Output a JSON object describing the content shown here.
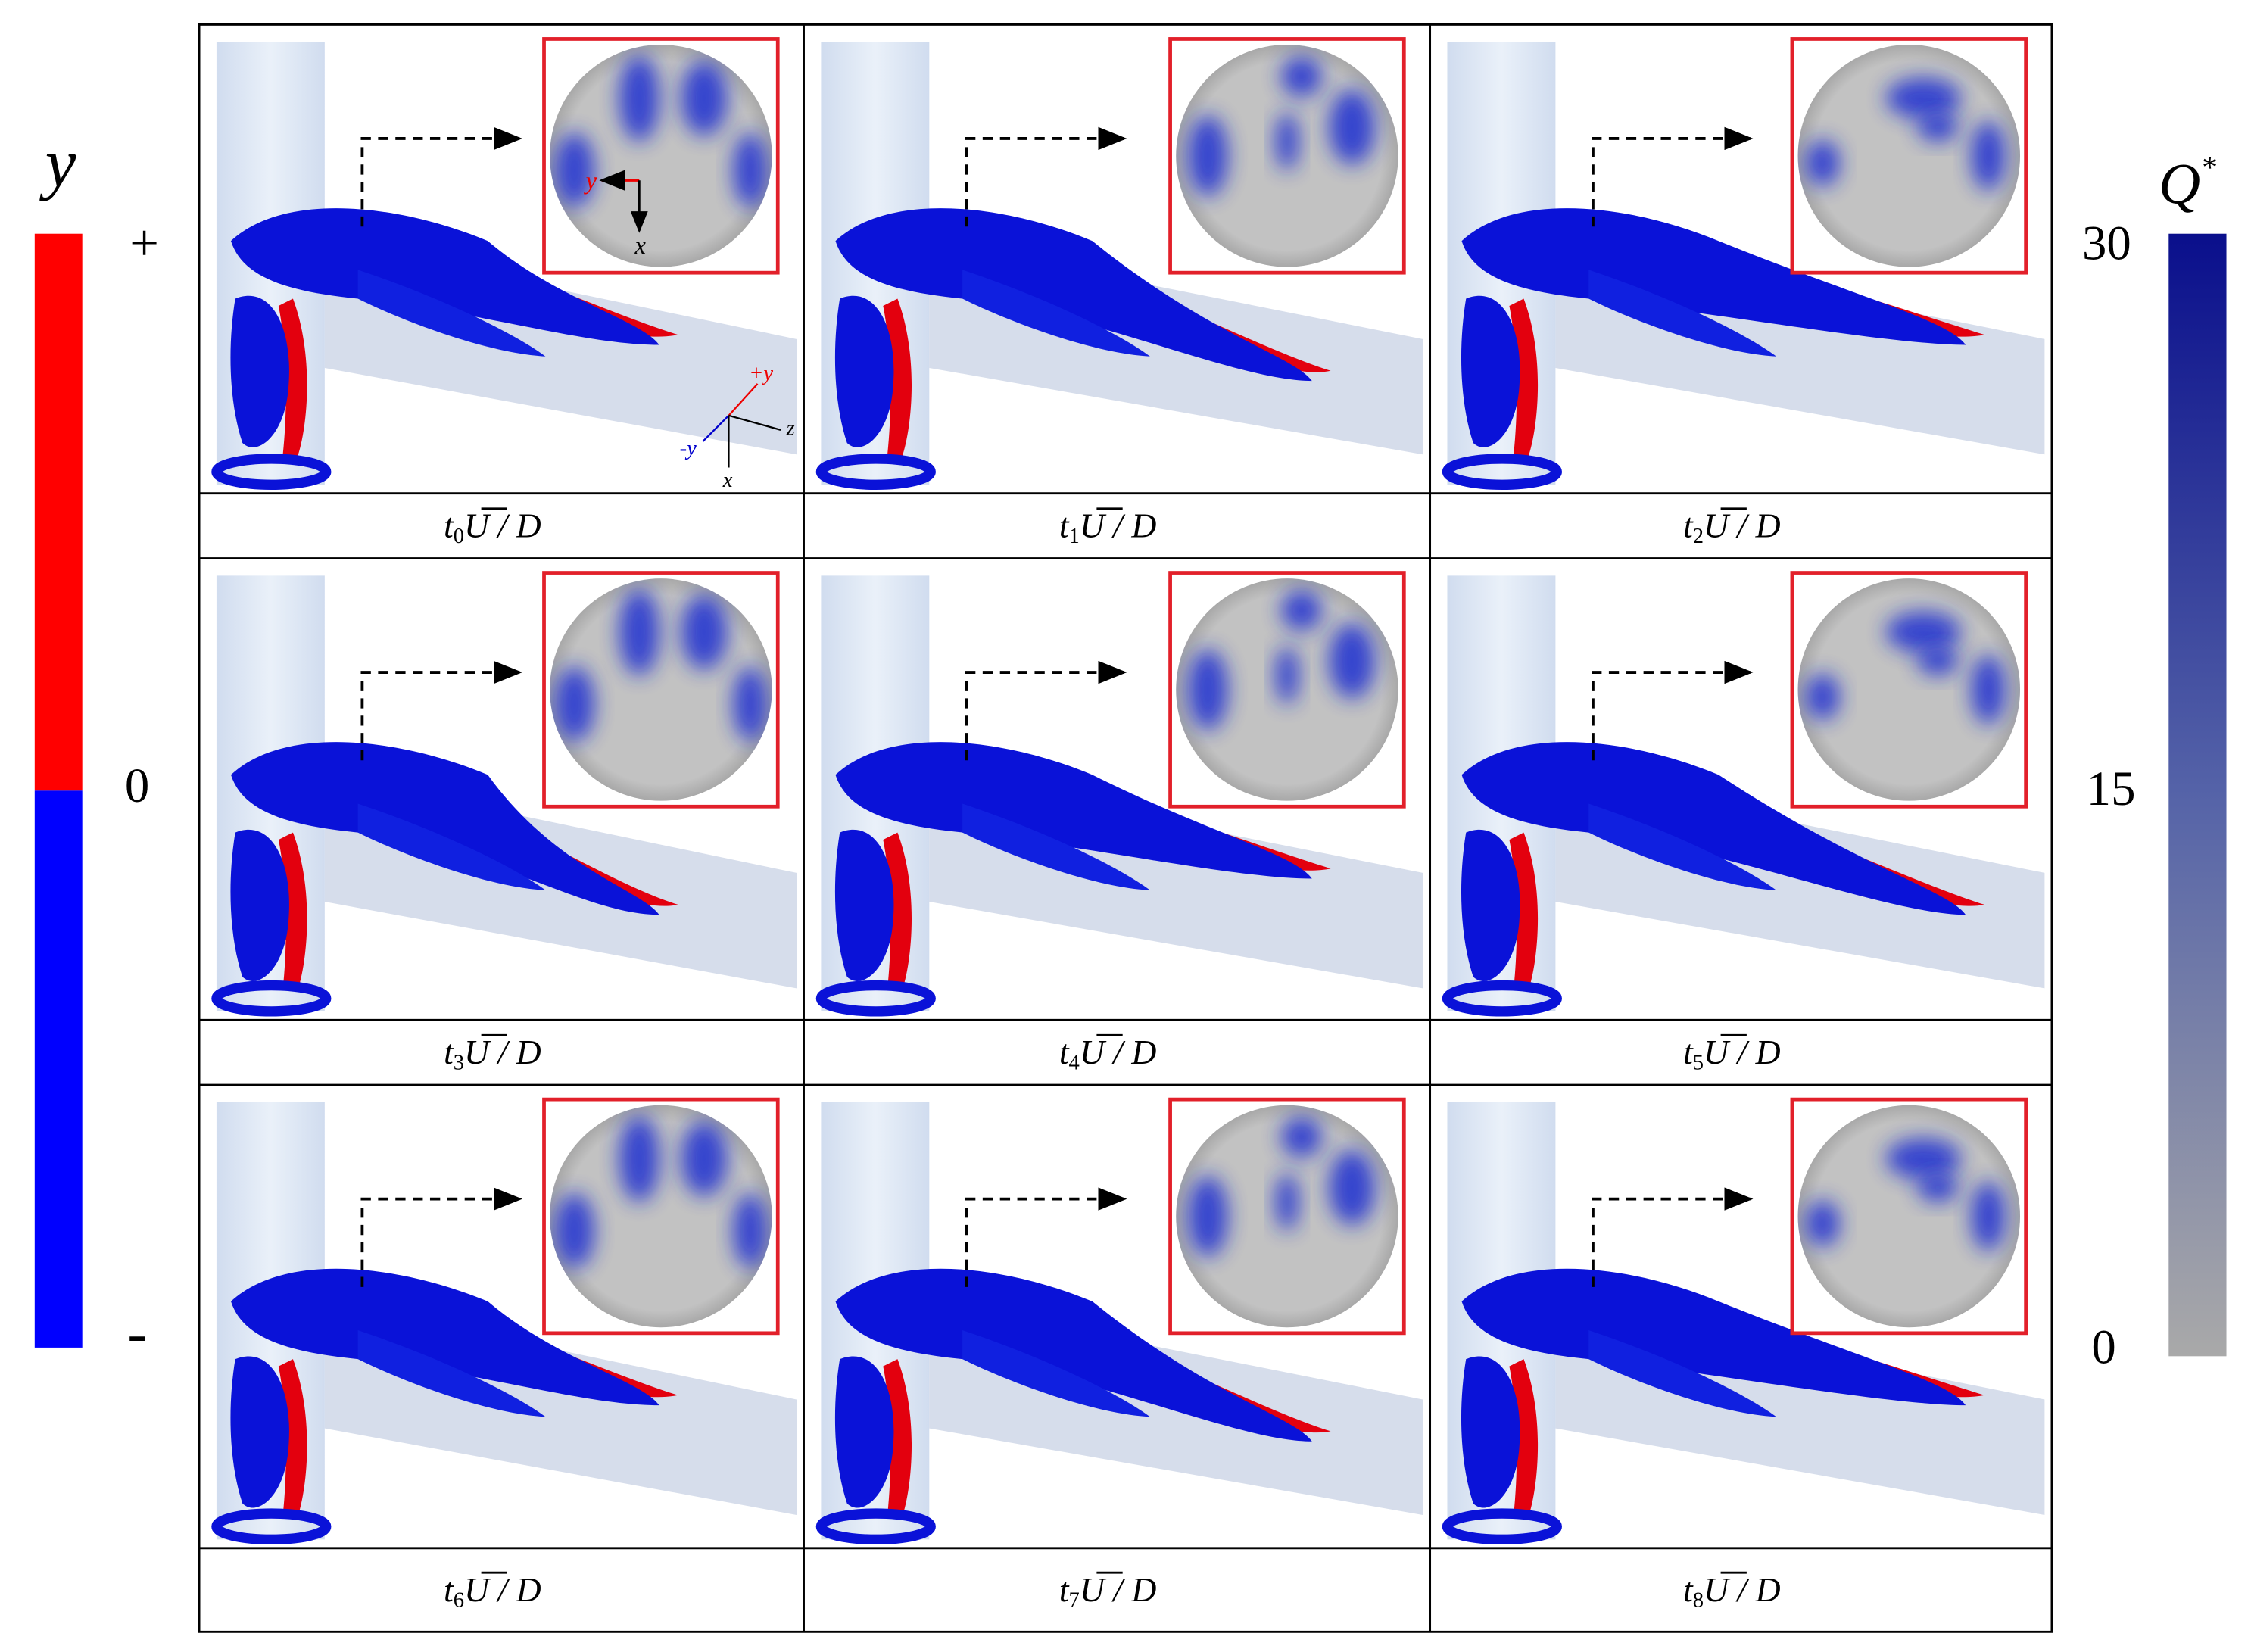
{
  "legend_y": {
    "label": "y",
    "plus": "+",
    "zero": "0",
    "minus": "-"
  },
  "legend_q": {
    "label": "Q",
    "sup": "*",
    "ticks": [
      "30",
      "15",
      "0"
    ]
  },
  "inset_axes": {
    "y": "y",
    "x": "x"
  },
  "triad": {
    "plus_y": "+y",
    "minus_y": "-y",
    "z": "z",
    "x": "x"
  },
  "panels": [
    {
      "t": "t",
      "index": "0",
      "u": "U",
      "rest": "/ D"
    },
    {
      "t": "t",
      "index": "1",
      "u": "U",
      "rest": "/ D"
    },
    {
      "t": "t",
      "index": "2",
      "u": "U",
      "rest": "/ D"
    },
    {
      "t": "t",
      "index": "3",
      "u": "U",
      "rest": "/ D"
    },
    {
      "t": "t",
      "index": "4",
      "u": "U",
      "rest": "/ D"
    },
    {
      "t": "t",
      "index": "5",
      "u": "U",
      "rest": "/ D"
    },
    {
      "t": "t",
      "index": "6",
      "u": "U",
      "rest": "/ D"
    },
    {
      "t": "t",
      "index": "7",
      "u": "U",
      "rest": "/ D"
    },
    {
      "t": "t",
      "index": "8",
      "u": "U",
      "rest": "/ D"
    }
  ]
}
